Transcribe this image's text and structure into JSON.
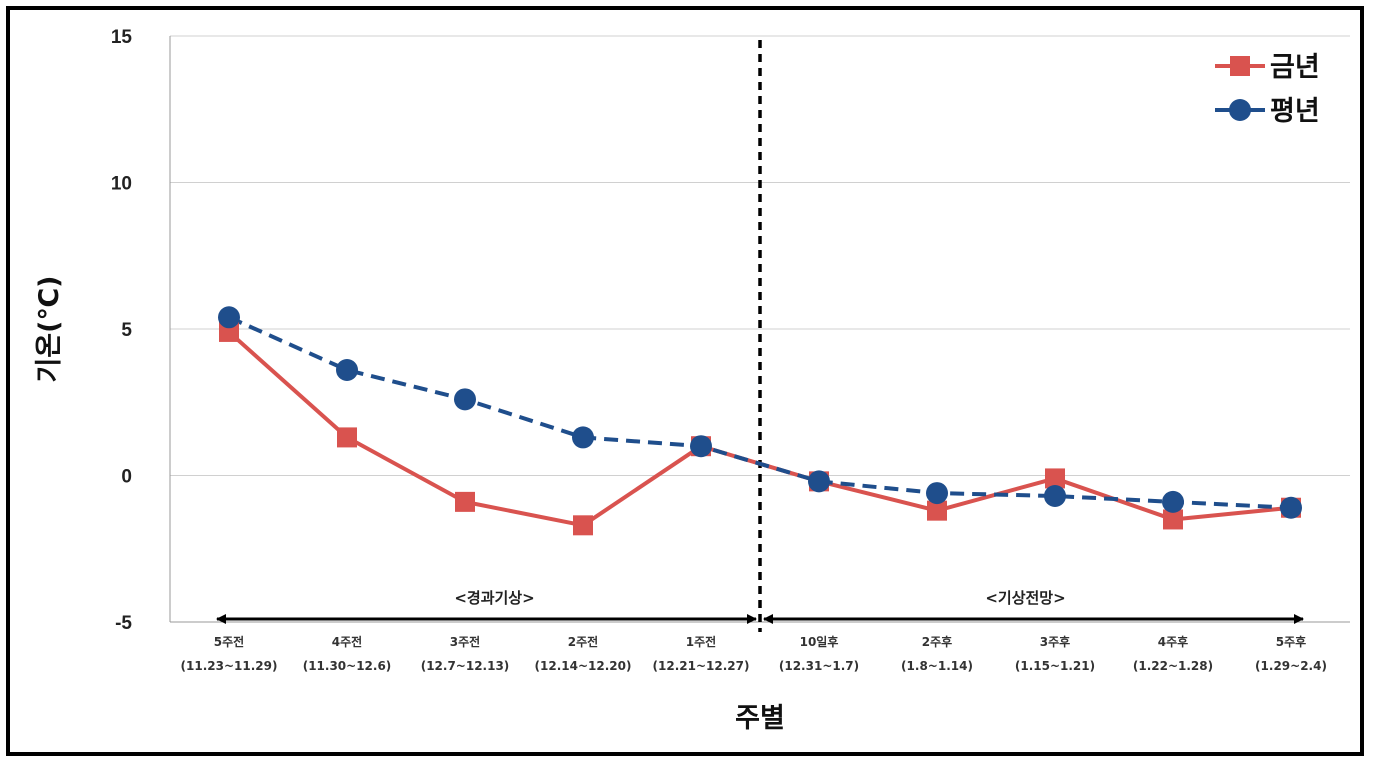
{
  "chart_data": {
    "type": "line",
    "xlabel": "주별",
    "ylabel": "기온(℃)",
    "ylim": [
      -5,
      15
    ],
    "yticks": [
      15,
      10,
      5,
      0,
      -5
    ],
    "grid": "horizontal",
    "legend_position": "top-right",
    "categories": [
      [
        "5주전",
        "(11.23~11.29)"
      ],
      [
        "4주전",
        "(11.30~12.6)"
      ],
      [
        "3주전",
        "(12.7~12.13)"
      ],
      [
        "2주전",
        "(12.14~12.20)"
      ],
      [
        "1주전",
        "(12.21~12.27)"
      ],
      [
        "10일후",
        "(12.31~1.7)"
      ],
      [
        "2주후",
        "(1.8~1.14)"
      ],
      [
        "3주후",
        "(1.15~1.21)"
      ],
      [
        "4주후",
        "(1.22~1.28)"
      ],
      [
        "5주후",
        "(1.29~2.4)"
      ]
    ],
    "series": [
      {
        "name": "금년",
        "color": "#d9534f",
        "line_style": "solid",
        "marker": "square",
        "values": [
          4.9,
          1.3,
          -0.9,
          -1.7,
          1.0,
          -0.2,
          -1.2,
          -0.1,
          -1.5,
          -1.1
        ]
      },
      {
        "name": "평년",
        "color": "#1f4e8c",
        "line_style": "dashed",
        "marker": "circle",
        "values": [
          5.4,
          3.6,
          2.6,
          1.3,
          1.0,
          -0.2,
          -0.6,
          -0.7,
          -0.9,
          -1.1
        ]
      }
    ],
    "annotations": {
      "past_label": "<경과기상>",
      "future_label": "<기상전망>",
      "divider": "vertical dashed line between 1주전 and 10일후"
    }
  }
}
